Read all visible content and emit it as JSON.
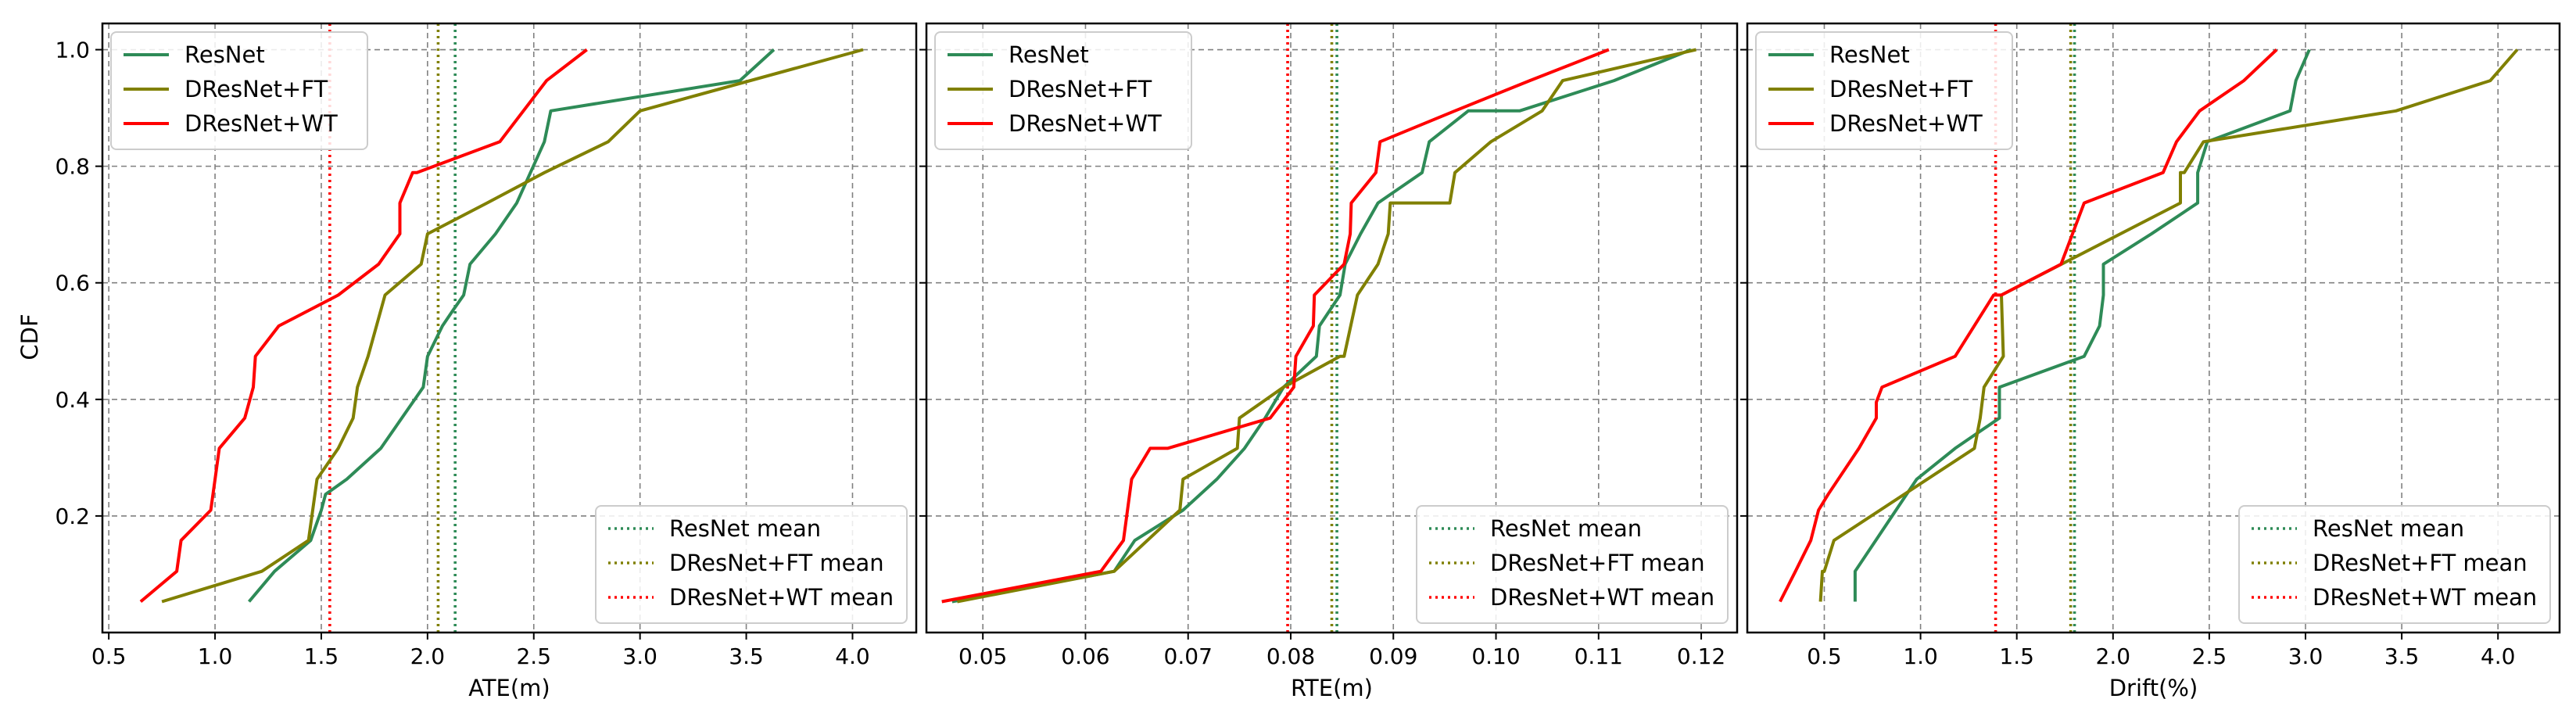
{
  "figure": {
    "ylabel": "CDF"
  },
  "colors": {
    "ResNet": "#2e8b57",
    "DResNet+FT": "#808000",
    "DResNet+WT": "#ff0000",
    "grid": "#808080"
  },
  "chart_data": [
    {
      "type": "line",
      "xlabel": "ATE(m)",
      "ylabel": "CDF",
      "xlim": [
        0.47,
        4.3
      ],
      "ylim": [
        0.0,
        1.045
      ],
      "xticks": [
        0.5,
        1.0,
        1.5,
        2.0,
        2.5,
        3.0,
        3.5,
        4.0
      ],
      "xtick_labels": [
        "0.5",
        "1.0",
        "1.5",
        "2.0",
        "2.5",
        "3.0",
        "3.5",
        "4.0"
      ],
      "yticks": [
        0.2,
        0.4,
        0.6,
        0.8,
        1.0
      ],
      "ytick_labels": [
        "0.2",
        "0.4",
        "0.6",
        "0.8",
        "1.0"
      ],
      "grid": true,
      "series": [
        {
          "name": "ResNet",
          "x": [
            1.16,
            1.28,
            1.45,
            1.5,
            1.52,
            1.62,
            1.78,
            1.98,
            2.0,
            2.07,
            2.12,
            2.17,
            2.2,
            2.32,
            2.42,
            2.55,
            2.58,
            3.47,
            3.63
          ],
          "y": [
            0.053,
            0.105,
            0.158,
            0.21,
            0.237,
            0.263,
            0.316,
            0.421,
            0.474,
            0.526,
            0.553,
            0.579,
            0.632,
            0.684,
            0.737,
            0.842,
            0.895,
            0.947,
            1.0
          ]
        },
        {
          "name": "DResNet+FT",
          "x": [
            0.75,
            1.22,
            1.44,
            1.48,
            1.58,
            1.65,
            1.67,
            1.72,
            1.8,
            1.97,
            2.0,
            2.28,
            2.55,
            2.85,
            3.0,
            4.05
          ],
          "y": [
            0.053,
            0.105,
            0.158,
            0.263,
            0.316,
            0.368,
            0.421,
            0.474,
            0.579,
            0.632,
            0.684,
            0.737,
            0.789,
            0.842,
            0.895,
            1.0
          ]
        },
        {
          "name": "DResNet+WT",
          "x": [
            0.65,
            0.82,
            0.84,
            0.98,
            1.0,
            1.02,
            1.14,
            1.18,
            1.19,
            1.3,
            1.58,
            1.77,
            1.87,
            1.87,
            1.93,
            1.95,
            2.34,
            2.56,
            2.75
          ],
          "y": [
            0.053,
            0.105,
            0.158,
            0.21,
            0.263,
            0.316,
            0.368,
            0.421,
            0.474,
            0.526,
            0.579,
            0.632,
            0.684,
            0.737,
            0.789,
            0.789,
            0.842,
            0.947,
            1.0
          ]
        }
      ],
      "means": [
        {
          "name": "ResNet mean",
          "x": 2.13
        },
        {
          "name": "DResNet+FT mean",
          "x": 2.05
        },
        {
          "name": "DResNet+WT mean",
          "x": 1.54
        }
      ]
    },
    {
      "type": "line",
      "xlabel": "RTE(m)",
      "ylabel": "",
      "xlim": [
        0.0445,
        0.1235
      ],
      "ylim": [
        0.0,
        1.045
      ],
      "xticks": [
        0.05,
        0.06,
        0.07,
        0.08,
        0.09,
        0.1,
        0.11,
        0.12
      ],
      "xtick_labels": [
        "0.05",
        "0.06",
        "0.07",
        "0.08",
        "0.09",
        "0.10",
        "0.11",
        "0.12"
      ],
      "yticks": [
        0.2,
        0.4,
        0.6,
        0.8,
        1.0
      ],
      "ytick_labels": [
        "",
        "",
        "",
        "",
        ""
      ],
      "grid": true,
      "series": [
        {
          "name": "ResNet",
          "x": [
            0.047,
            0.0628,
            0.0648,
            0.0695,
            0.0728,
            0.0755,
            0.0775,
            0.0793,
            0.0825,
            0.0828,
            0.0848,
            0.0853,
            0.0868,
            0.0885,
            0.0928,
            0.0935,
            0.0973,
            0.1023,
            0.1115,
            0.119
          ],
          "y": [
            0.053,
            0.105,
            0.158,
            0.21,
            0.263,
            0.316,
            0.368,
            0.421,
            0.474,
            0.526,
            0.579,
            0.632,
            0.684,
            0.737,
            0.789,
            0.842,
            0.895,
            0.895,
            0.947,
            1.0
          ]
        },
        {
          "name": "DResNet+FT",
          "x": [
            0.0475,
            0.0628,
            0.0692,
            0.0695,
            0.0748,
            0.075,
            0.0793,
            0.0848,
            0.0852,
            0.0865,
            0.0885,
            0.0895,
            0.0897,
            0.0955,
            0.096,
            0.0995,
            0.1045,
            0.1065,
            0.1195
          ],
          "y": [
            0.053,
            0.105,
            0.21,
            0.263,
            0.316,
            0.368,
            0.421,
            0.474,
            0.474,
            0.579,
            0.632,
            0.684,
            0.737,
            0.737,
            0.789,
            0.842,
            0.895,
            0.947,
            1.0
          ]
        },
        {
          "name": "DResNet+WT",
          "x": [
            0.046,
            0.0615,
            0.0637,
            0.0645,
            0.0663,
            0.068,
            0.078,
            0.0803,
            0.0805,
            0.0822,
            0.0823,
            0.0852,
            0.0858,
            0.0859,
            0.0883,
            0.0887,
            0.096,
            0.1033,
            0.111
          ],
          "y": [
            0.053,
            0.105,
            0.158,
            0.263,
            0.316,
            0.316,
            0.368,
            0.421,
            0.474,
            0.526,
            0.579,
            0.632,
            0.684,
            0.737,
            0.789,
            0.842,
            0.895,
            0.947,
            1.0
          ]
        }
      ],
      "means": [
        {
          "name": "ResNet mean",
          "x": 0.0845
        },
        {
          "name": "DResNet+FT mean",
          "x": 0.084
        },
        {
          "name": "DResNet+WT mean",
          "x": 0.0797
        }
      ]
    },
    {
      "type": "line",
      "xlabel": "Drift(%)",
      "ylabel": "",
      "xlim": [
        0.1,
        4.32
      ],
      "ylim": [
        0.0,
        1.045
      ],
      "xticks": [
        0.5,
        1.0,
        1.5,
        2.0,
        2.5,
        3.0,
        3.5,
        4.0
      ],
      "xtick_labels": [
        "0.5",
        "1.0",
        "1.5",
        "2.0",
        "2.5",
        "3.0",
        "3.5",
        "4.0"
      ],
      "yticks": [
        0.2,
        0.4,
        0.6,
        0.8,
        1.0
      ],
      "ytick_labels": [
        "",
        "",
        "",
        "",
        ""
      ],
      "grid": true,
      "series": [
        {
          "name": "ResNet",
          "x": [
            0.66,
            0.66,
            0.98,
            1.18,
            1.41,
            1.41,
            1.85,
            1.93,
            1.95,
            1.95,
            2.2,
            2.44,
            2.44,
            2.49,
            2.92,
            2.95,
            3.02
          ],
          "y": [
            0.053,
            0.105,
            0.263,
            0.316,
            0.368,
            0.421,
            0.474,
            0.526,
            0.579,
            0.632,
            0.684,
            0.737,
            0.789,
            0.842,
            0.895,
            0.947,
            1.0
          ]
        },
        {
          "name": "DResNet+FT",
          "x": [
            0.48,
            0.49,
            0.5,
            0.55,
            1.28,
            1.31,
            1.33,
            1.43,
            1.42,
            2.35,
            2.35,
            2.37,
            2.47,
            3.47,
            3.96,
            4.1
          ],
          "y": [
            0.053,
            0.105,
            0.105,
            0.158,
            0.316,
            0.368,
            0.421,
            0.474,
            0.579,
            0.737,
            0.789,
            0.789,
            0.842,
            0.895,
            0.947,
            1.0
          ]
        },
        {
          "name": "DResNet+WT",
          "x": [
            0.27,
            0.35,
            0.43,
            0.47,
            0.52,
            0.68,
            0.77,
            0.77,
            0.8,
            1.18,
            1.38,
            1.42,
            1.73,
            1.85,
            2.26,
            2.33,
            2.45,
            2.68,
            2.85
          ],
          "y": [
            0.053,
            0.105,
            0.158,
            0.21,
            0.237,
            0.316,
            0.368,
            0.395,
            0.421,
            0.474,
            0.579,
            0.579,
            0.632,
            0.737,
            0.789,
            0.842,
            0.895,
            0.947,
            1.0
          ]
        }
      ],
      "means": [
        {
          "name": "ResNet mean",
          "x": 1.8
        },
        {
          "name": "DResNet+FT mean",
          "x": 1.78
        },
        {
          "name": "DResNet+WT mean",
          "x": 1.39
        }
      ]
    }
  ]
}
